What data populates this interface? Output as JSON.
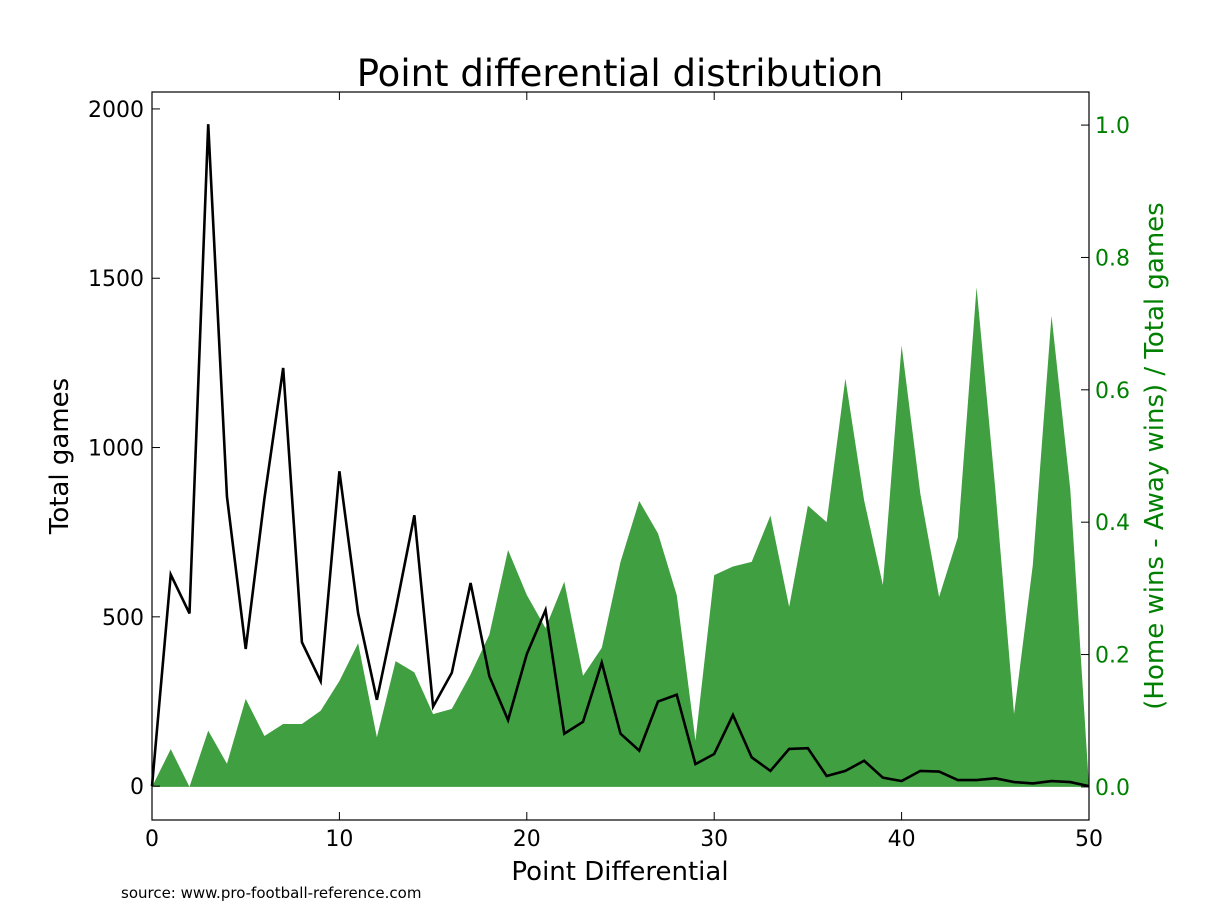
{
  "chart_data": {
    "type": "line",
    "title": "Point differential distribution",
    "xlabel": "Point Differential",
    "ylabel": "Total games",
    "y2label": "(Home wins - Away wins) / Total games",
    "xlim": [
      0,
      50
    ],
    "ylim": [
      -100,
      2050
    ],
    "y2lim": [
      -0.05,
      1.05
    ],
    "xticks": [
      0,
      10,
      20,
      30,
      40,
      50
    ],
    "yticks": [
      0,
      500,
      1000,
      1500,
      2000
    ],
    "y2ticks": [
      0.0,
      0.2,
      0.4,
      0.6,
      0.8,
      1.0
    ],
    "grid": false,
    "x": [
      0,
      1,
      2,
      3,
      4,
      5,
      6,
      7,
      8,
      9,
      10,
      11,
      12,
      13,
      14,
      15,
      16,
      17,
      18,
      19,
      20,
      21,
      22,
      23,
      24,
      25,
      26,
      27,
      28,
      29,
      30,
      31,
      32,
      33,
      34,
      35,
      36,
      37,
      38,
      39,
      40,
      41,
      42,
      43,
      44,
      45,
      46,
      47,
      48,
      49,
      50
    ],
    "series": [
      {
        "axis": "left",
        "kind": "line",
        "color": "#000000",
        "values": [
          0,
          625,
          510,
          1955,
          855,
          405,
          850,
          1235,
          425,
          310,
          930,
          510,
          255,
          520,
          800,
          235,
          335,
          600,
          325,
          195,
          390,
          520,
          155,
          190,
          365,
          155,
          105,
          250,
          270,
          65,
          95,
          210,
          85,
          45,
          110,
          112,
          30,
          45,
          75,
          25,
          15,
          45,
          43,
          18,
          18,
          23,
          12,
          8,
          15,
          12,
          0
        ]
      },
      {
        "axis": "right",
        "kind": "area",
        "color": "#409f40",
        "values": [
          0.0,
          0.057,
          0.0,
          0.085,
          0.035,
          0.133,
          0.077,
          0.095,
          0.095,
          0.115,
          0.16,
          0.217,
          0.075,
          0.19,
          0.173,
          0.11,
          0.118,
          0.17,
          0.23,
          0.358,
          0.29,
          0.24,
          0.31,
          0.168,
          0.21,
          0.34,
          0.432,
          0.383,
          0.29,
          0.07,
          0.32,
          0.333,
          0.34,
          0.41,
          0.272,
          0.425,
          0.4,
          0.617,
          0.433,
          0.305,
          0.667,
          0.443,
          0.287,
          0.377,
          0.755,
          0.45,
          0.11,
          0.335,
          0.712,
          0.45,
          0.0
        ]
      }
    ]
  },
  "source": "source: www.pro-football-reference.com"
}
